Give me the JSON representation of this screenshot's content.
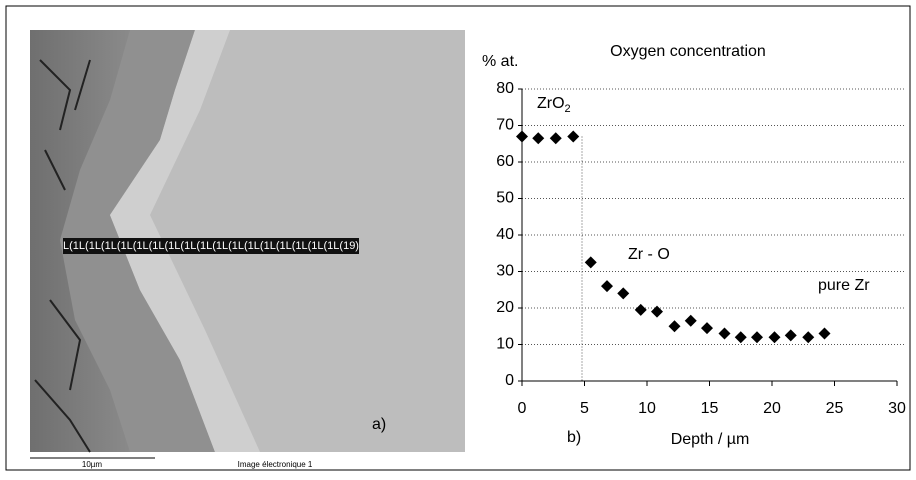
{
  "chart_data": {
    "type": "scatter",
    "title": "Oxygen concentration",
    "y_label": "% at.",
    "x_label": "Depth / µm",
    "x": [
      0,
      1.3,
      2.7,
      4.1,
      5.5,
      6.8,
      8.1,
      9.5,
      10.8,
      12.2,
      13.5,
      14.8,
      16.2,
      17.5,
      18.8,
      20.2,
      21.5,
      22.9,
      24.2
    ],
    "values": [
      67,
      66.5,
      66.5,
      67,
      32.5,
      26,
      24,
      19.5,
      19,
      15,
      16.5,
      14.5,
      13,
      12,
      12,
      12,
      12.5,
      12,
      13
    ],
    "color": "#000000",
    "xlim": [
      0,
      30
    ],
    "xticks": [
      0,
      5,
      10,
      15,
      20,
      25,
      30
    ],
    "ylim": [
      0,
      80
    ],
    "yticks": [
      0,
      10,
      20,
      30,
      40,
      50,
      60,
      70,
      80
    ],
    "grid": true,
    "boundary_x": 4.8,
    "annotations": {
      "zro2": {
        "text": "ZrO",
        "sub": "2"
      },
      "zro": "Zr - O",
      "pure": "pure Zr"
    },
    "panel_label": "b)"
  },
  "image_panel": {
    "panel_label": "a)",
    "line_scan": "L(1L(1L(1L(1L(1L(1L(1L(1L(1L(1L(1L(1L(1L(1L(1L(1L(1L(19)",
    "scale_bar": "10µm",
    "caption": "Image électronique 1"
  }
}
